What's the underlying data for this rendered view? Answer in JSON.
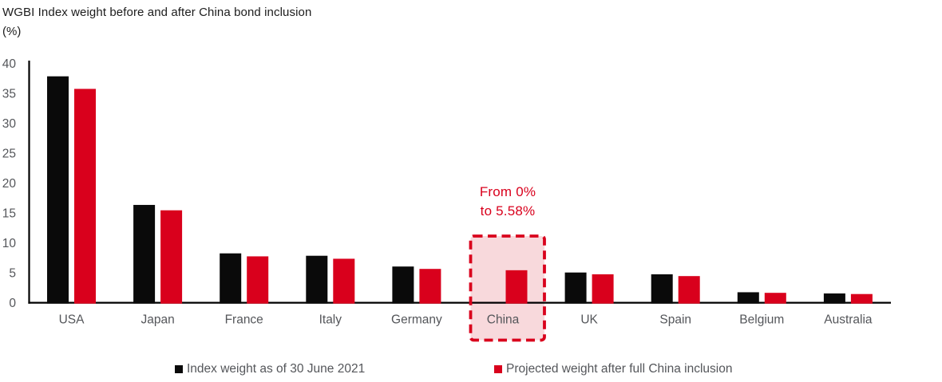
{
  "title": "WGBI Index weight before and after China bond inclusion",
  "unit_label": "(%)",
  "annotation": {
    "line1": "From 0%",
    "line2": "to 5.58%"
  },
  "legend": {
    "items": [
      {
        "label": "Index weight as of 30 June 2021",
        "color": "#0a0a0a"
      },
      {
        "label": "Projected weight after full China inclusion",
        "color": "#d9001c"
      }
    ]
  },
  "colors": {
    "before_bar": "#0a0a0a",
    "after_bar": "#d9001c",
    "highlight_fill": "#f8d9dc",
    "highlight_border": "#d9001c",
    "annotation_text": "#d9001c",
    "axis_line": "#000000",
    "tick_text": "#54565a",
    "title_text": "#1c1c1c"
  },
  "chart_data": {
    "type": "bar",
    "title": "WGBI Index weight before and after China bond inclusion",
    "ylabel": "(%)",
    "categories": [
      "USA",
      "Japan",
      "France",
      "Italy",
      "Germany",
      "China",
      "UK",
      "Spain",
      "Belgium",
      "Australia"
    ],
    "series": [
      {
        "name": "Index weight as of 30 June 2021",
        "color": "#0a0a0a",
        "values": [
          38.0,
          16.5,
          8.4,
          8.0,
          6.2,
          0,
          5.2,
          4.9,
          1.9,
          1.7
        ]
      },
      {
        "name": "Projected weight after full China inclusion",
        "color": "#d9001c",
        "values": [
          35.9,
          15.6,
          7.9,
          7.5,
          5.8,
          5.58,
          4.9,
          4.6,
          1.8,
          1.6
        ]
      }
    ],
    "ylim": [
      0,
      40
    ],
    "ytick_step": 5,
    "yticks": [
      0,
      5,
      10,
      15,
      20,
      25,
      30,
      35,
      40
    ],
    "grid": false,
    "legend_position": "bottom",
    "highlight": {
      "category": "China",
      "note": "From 0% to 5.58%"
    }
  }
}
